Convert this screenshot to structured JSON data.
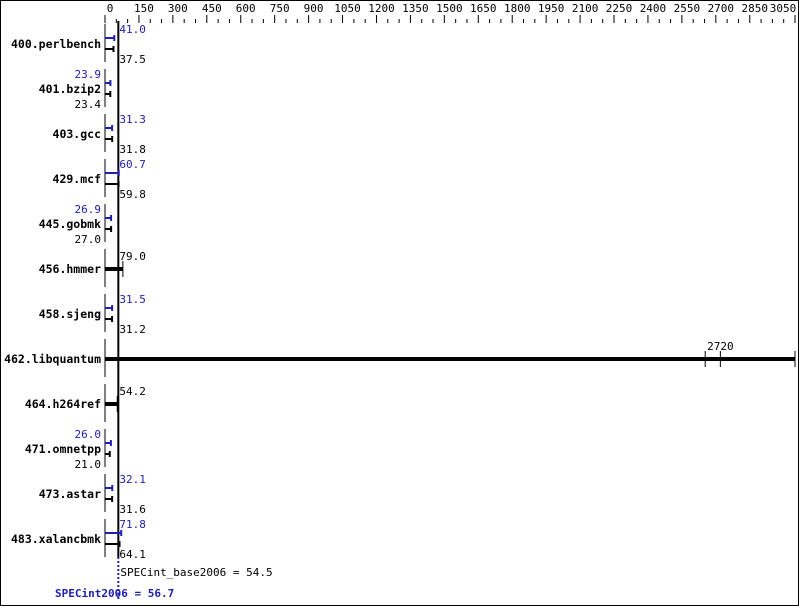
{
  "chart_data": {
    "type": "bar",
    "orientation": "horizontal",
    "x_ticks": [
      0,
      150,
      300,
      450,
      600,
      750,
      900,
      1050,
      1200,
      1350,
      1500,
      1650,
      1800,
      1950,
      2100,
      2250,
      2400,
      2550,
      2700,
      2850,
      3050
    ],
    "xlim": [
      0,
      3050
    ],
    "grid": false,
    "colors": {
      "base": "#000000",
      "peak": "#2020b0"
    },
    "categories": [
      "400.perlbench",
      "401.bzip2",
      "403.gcc",
      "429.mcf",
      "445.gobmk",
      "456.hmmer",
      "458.sjeng",
      "462.libquantum",
      "464.h264ref",
      "471.omnetpp",
      "473.astar",
      "483.xalancbmk"
    ],
    "series": [
      {
        "key": "peak",
        "values": [
          41.0,
          23.9,
          31.3,
          60.7,
          26.9,
          null,
          31.5,
          null,
          null,
          26.0,
          32.1,
          71.8
        ],
        "labels": [
          "41.0",
          "23.9",
          "31.3",
          "60.7",
          "26.9",
          "",
          "31.5",
          "",
          "",
          "26.0",
          "32.1",
          "71.8"
        ]
      },
      {
        "key": "base",
        "values": [
          37.5,
          23.4,
          31.8,
          59.8,
          27.0,
          79.0,
          31.2,
          2720,
          54.2,
          21.0,
          31.6,
          64.1
        ],
        "labels": [
          "37.5",
          "23.4",
          "31.8",
          "59.8",
          "27.0",
          "79.0",
          "31.2",
          "2720",
          "54.2",
          "21.0",
          "31.6",
          "64.1"
        ]
      }
    ],
    "summary": {
      "base_label": "SPECint_base2006 = 54.5",
      "base_value": 54.5,
      "peak_label": "SPECint2006 = 56.7",
      "peak_value": 56.7
    }
  }
}
